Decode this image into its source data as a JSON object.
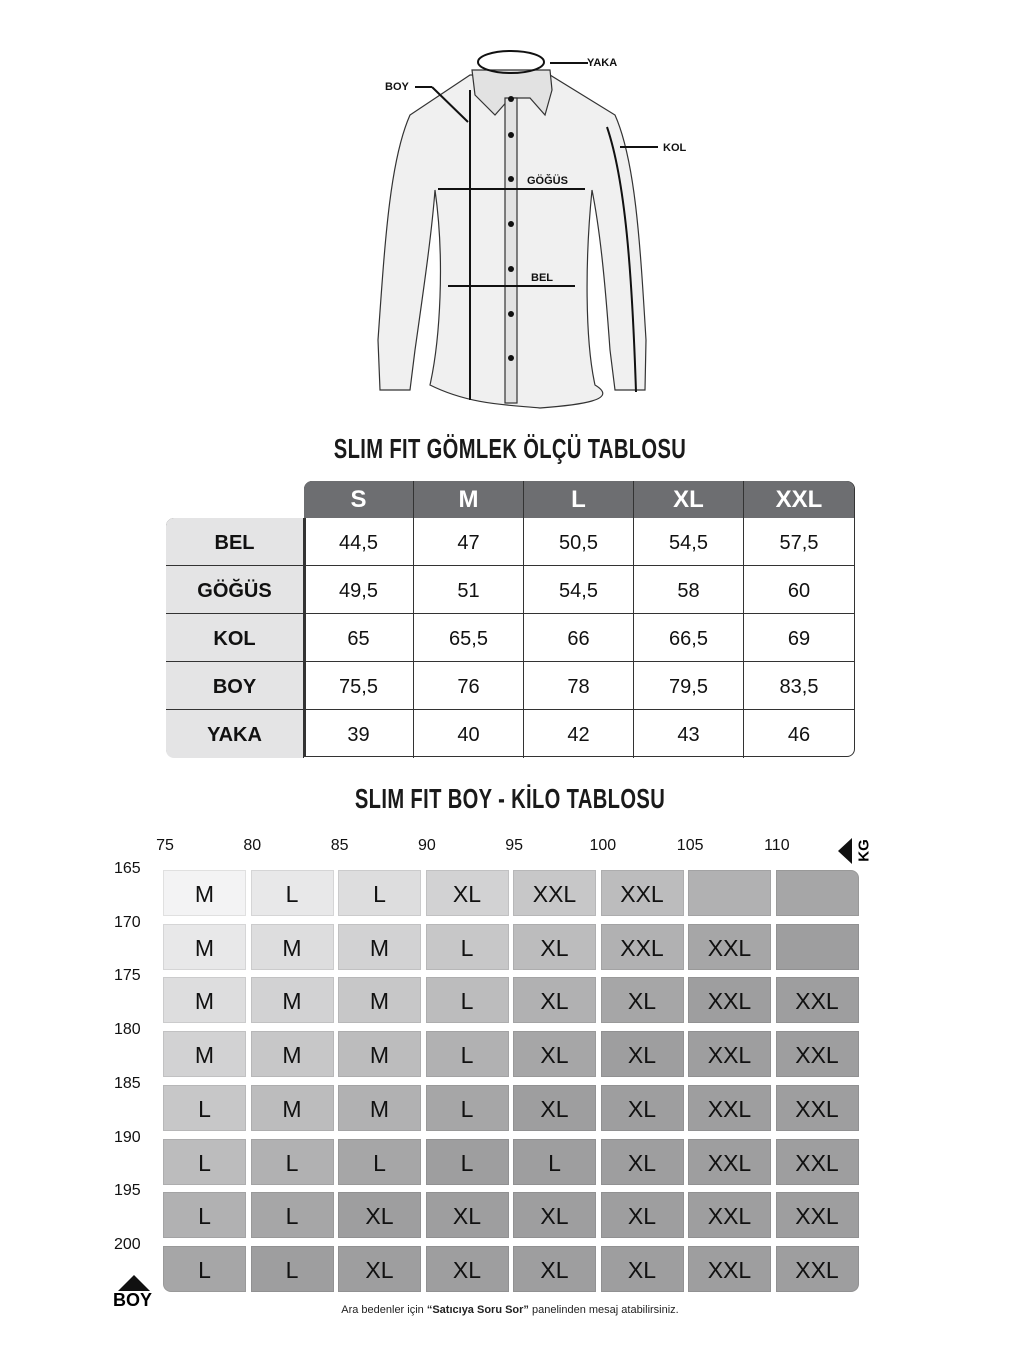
{
  "diagram": {
    "labels": {
      "yaka": "YAKA",
      "boy": "BOY",
      "kol": "KOL",
      "gogus": "GÖĞÜS",
      "bel": "BEL"
    }
  },
  "size_table": {
    "title": "SLIM FIT GÖMLEK ÖLÇÜ TABLOSU",
    "columns": [
      "S",
      "M",
      "L",
      "XL",
      "XXL"
    ],
    "rows": [
      {
        "label": "BEL",
        "values": [
          "44,5",
          "47",
          "50,5",
          "54,5",
          "57,5"
        ]
      },
      {
        "label": "GÖĞÜS",
        "values": [
          "49,5",
          "51",
          "54,5",
          "58",
          "60"
        ]
      },
      {
        "label": "KOL",
        "values": [
          "65",
          "65,5",
          "66",
          "66,5",
          "69"
        ]
      },
      {
        "label": "BOY",
        "values": [
          "75,5",
          "76",
          "78",
          "79,5",
          "83,5"
        ]
      },
      {
        "label": "YAKA",
        "values": [
          "39",
          "40",
          "42",
          "43",
          "46"
        ]
      }
    ],
    "header_color": "#6d6e71",
    "label_color": "#e4e4e5"
  },
  "weight_table": {
    "title": "SLIM FIT BOY - KİLO TABLOSU",
    "kg_label": "KG",
    "boy_label": "BOY",
    "kg_ticks": [
      "75",
      "80",
      "85",
      "90",
      "95",
      "100",
      "105",
      "110"
    ],
    "boy_ticks": [
      "165",
      "170",
      "175",
      "180",
      "185",
      "190",
      "195",
      "200"
    ],
    "rows": [
      [
        "M",
        "L",
        "L",
        "XL",
        "XXL",
        "XXL",
        "",
        ""
      ],
      [
        "M",
        "M",
        "M",
        "L",
        "XL",
        "XXL",
        "XXL",
        ""
      ],
      [
        "M",
        "M",
        "M",
        "L",
        "XL",
        "XL",
        "XXL",
        "XXL"
      ],
      [
        "M",
        "M",
        "M",
        "L",
        "XL",
        "XL",
        "XXL",
        "XXL"
      ],
      [
        "L",
        "M",
        "M",
        "L",
        "XL",
        "XL",
        "XXL",
        "XXL"
      ],
      [
        "L",
        "L",
        "L",
        "L",
        "L",
        "XL",
        "XXL",
        "XXL"
      ],
      [
        "L",
        "L",
        "XL",
        "XL",
        "XL",
        "XL",
        "XXL",
        "XXL"
      ],
      [
        "L",
        "L",
        "XL",
        "XL",
        "XL",
        "XL",
        "XXL",
        "XXL"
      ]
    ]
  },
  "footer": {
    "pre": "Ara bedenler için ",
    "bold": "“Satıcıya Soru Sor”",
    "post": " panelinden mesaj atabilirsiniz."
  }
}
